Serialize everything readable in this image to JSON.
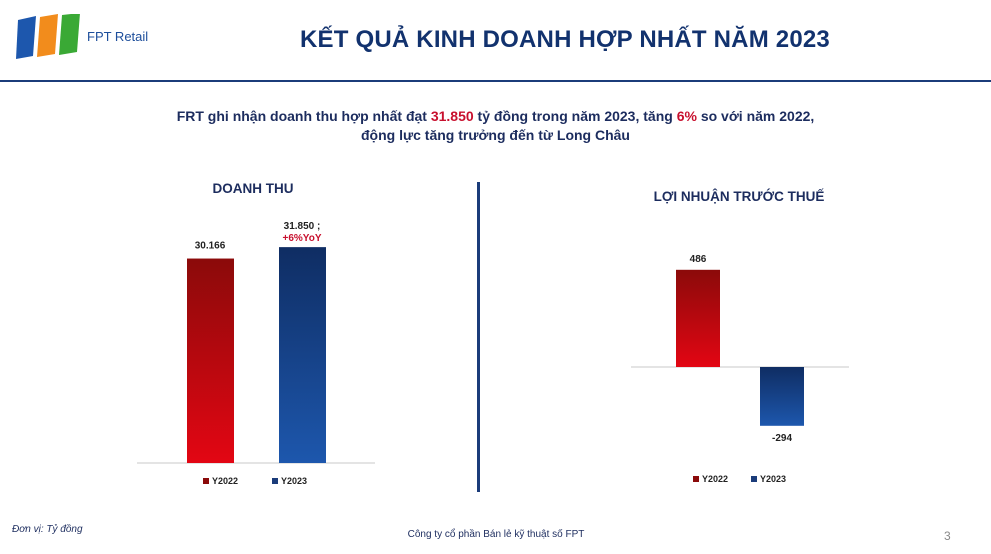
{
  "header": {
    "brand": "FPT Retail",
    "title": "KẾT QUẢ KINH DOANH HỢP NHẤT NĂM 2023"
  },
  "headline": {
    "part1": "FRT ghi nhận doanh thu hợp nhất đạt ",
    "hl1": "31.850",
    "part2": " tỷ đồng trong năm 2023, tăng ",
    "hl2": "6%",
    "part3": " so với năm 2022,",
    "line2": "động lực tăng trưởng đến từ Long Châu"
  },
  "colors": {
    "y2022_top": "#8b0a0a",
    "y2022_bottom": "#e30613",
    "y2023_top": "#0f2d63",
    "y2023_bottom": "#1d57ad",
    "highlight": "#c8102e"
  },
  "chart_data": [
    {
      "type": "bar",
      "title": "DOANH THU",
      "categories": [
        "Y2022",
        "Y2023"
      ],
      "values": [
        30166,
        31850
      ],
      "labels": [
        "30.166",
        "31.850 ;"
      ],
      "annotations": [
        null,
        "+6%YoY"
      ],
      "legend": [
        "Y2022",
        "Y2023"
      ],
      "ylim": [
        0,
        36000
      ]
    },
    {
      "type": "bar",
      "title": "LỢI NHUẬN TRƯỚC THUẾ",
      "categories": [
        "Y2022",
        "Y2023"
      ],
      "values": [
        486,
        -294
      ],
      "labels": [
        "486",
        "-294"
      ],
      "legend": [
        "Y2022",
        "Y2023"
      ],
      "ylim": [
        -400,
        600
      ]
    }
  ],
  "footer": {
    "unit": "Đơn vị: Tỷ đồng",
    "company": "Công ty cổ phần Bán lẻ kỹ thuật số FPT",
    "page": "3"
  }
}
